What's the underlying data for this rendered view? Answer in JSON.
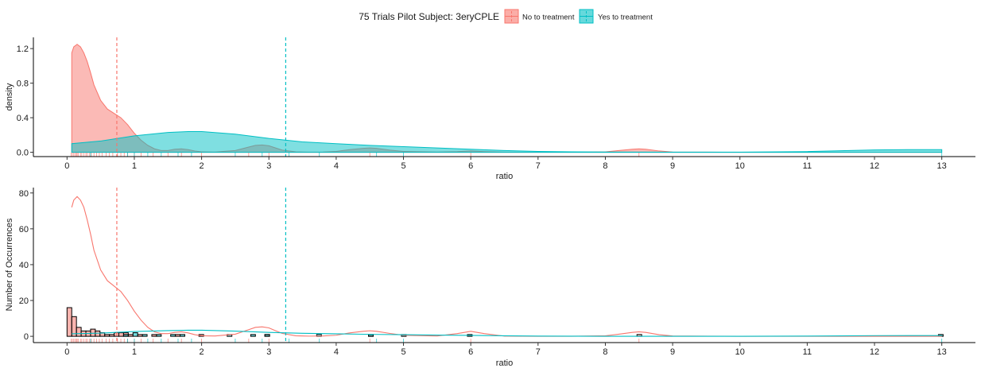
{
  "legend": {
    "title": "75 Trials Pilot Subject:  3eryCPLE",
    "items": [
      {
        "label": "No to treatment",
        "fill": "#F8766D",
        "key": "no"
      },
      {
        "label": "Yes to treatment",
        "fill": "#00BFC4",
        "key": "yes"
      }
    ]
  },
  "chart_data": [
    {
      "type": "area",
      "xlabel": "ratio",
      "ylabel": "density",
      "xlim": [
        -0.5,
        13.5
      ],
      "ylim": [
        -0.05,
        1.33
      ],
      "xticks": [
        0,
        1,
        2,
        3,
        4,
        5,
        6,
        7,
        8,
        9,
        10,
        11,
        12,
        13
      ],
      "yticks": [
        0.0,
        0.4,
        0.8,
        1.2
      ],
      "ytick_labels": [
        "0.0",
        "0.4",
        "0.8",
        "1.2"
      ],
      "series": [
        {
          "name": "No to treatment",
          "color": "#F8766D",
          "mean": 0.74,
          "x": [
            0.07,
            0.1,
            0.15,
            0.2,
            0.25,
            0.3,
            0.35,
            0.4,
            0.5,
            0.6,
            0.7,
            0.8,
            0.9,
            1.0,
            1.1,
            1.2,
            1.3,
            1.4,
            1.5,
            1.6,
            1.7,
            1.8,
            1.9,
            2.0,
            2.2,
            2.5,
            2.7,
            2.8,
            2.9,
            3.0,
            3.1,
            3.2,
            3.4,
            3.6,
            3.8,
            4.0,
            4.2,
            4.4,
            4.5,
            4.6,
            4.8,
            5.0,
            5.5,
            5.8,
            6.0,
            6.2,
            6.5,
            7.0,
            7.5,
            8.0,
            8.2,
            8.4,
            8.5,
            8.6,
            8.8,
            9.0,
            10.0,
            11.0,
            12.0,
            13.0
          ],
          "y": [
            1.15,
            1.22,
            1.25,
            1.22,
            1.15,
            1.05,
            0.92,
            0.78,
            0.6,
            0.5,
            0.45,
            0.4,
            0.32,
            0.22,
            0.14,
            0.08,
            0.04,
            0.02,
            0.02,
            0.035,
            0.04,
            0.03,
            0.015,
            0.005,
            0.003,
            0.02,
            0.06,
            0.08,
            0.085,
            0.075,
            0.05,
            0.025,
            0.005,
            0.002,
            0.003,
            0.01,
            0.03,
            0.045,
            0.05,
            0.045,
            0.025,
            0.01,
            0.003,
            0.008,
            0.015,
            0.008,
            0.002,
            0.0,
            0.0,
            0.005,
            0.02,
            0.035,
            0.04,
            0.035,
            0.015,
            0.003,
            0.0,
            0.0,
            0.0,
            0.0
          ]
        },
        {
          "name": "Yes to treatment",
          "color": "#00BFC4",
          "mean": 3.25,
          "x": [
            0.07,
            0.5,
            1.0,
            1.5,
            1.8,
            2.0,
            2.5,
            3.0,
            3.5,
            4.0,
            4.5,
            5.0,
            5.5,
            6.0,
            6.5,
            7.0,
            7.5,
            8.0,
            9.0,
            10.0,
            11.0,
            11.5,
            12.0,
            12.5,
            13.0
          ],
          "y": [
            0.1,
            0.13,
            0.19,
            0.23,
            0.24,
            0.24,
            0.21,
            0.16,
            0.12,
            0.1,
            0.08,
            0.065,
            0.05,
            0.035,
            0.02,
            0.01,
            0.005,
            0.003,
            0.002,
            0.002,
            0.008,
            0.018,
            0.027,
            0.03,
            0.03
          ]
        }
      ],
      "rug": {
        "No to treatment": [
          0.06,
          0.08,
          0.1,
          0.12,
          0.14,
          0.15,
          0.17,
          0.2,
          0.22,
          0.25,
          0.28,
          0.3,
          0.33,
          0.36,
          0.4,
          0.44,
          0.48,
          0.52,
          0.58,
          0.63,
          0.68,
          0.75,
          0.8,
          0.85,
          0.9,
          1.0,
          1.1,
          1.28,
          1.5,
          1.7,
          2.0,
          2.7,
          3.0,
          4.5,
          6.0,
          8.5
        ],
        "Yes to treatment": [
          0.35,
          0.9,
          1.0,
          1.2,
          1.4,
          1.65,
          1.85,
          2.5,
          2.9,
          3.3,
          3.75,
          4.6,
          5.0,
          13.0
        ]
      }
    },
    {
      "type": "bar",
      "xlabel": "ratio",
      "ylabel": "Number of Occurrences",
      "xlim": [
        -0.5,
        13.5
      ],
      "ylim": [
        -3.5,
        83
      ],
      "xticks": [
        0,
        1,
        2,
        3,
        4,
        5,
        6,
        7,
        8,
        9,
        10,
        11,
        12,
        13
      ],
      "yticks": [
        0,
        20,
        40,
        60,
        80
      ],
      "ytick_labels": [
        "0",
        "20",
        "40",
        "60",
        "80"
      ],
      "bins": {
        "No to treatment": {
          "start": [
            0.0,
            0.07,
            0.14,
            0.21,
            0.28,
            0.35,
            0.42,
            0.49,
            0.56,
            0.63,
            0.7,
            0.77,
            0.84,
            0.91,
            1.05,
            1.26,
            1.61,
            1.96,
            2.94,
            4.48,
            5.95,
            8.47
          ],
          "count": [
            16,
            11,
            5,
            3,
            3,
            4,
            3,
            2,
            1,
            1,
            2,
            2,
            2,
            1,
            1,
            1,
            1,
            1,
            1,
            1,
            1,
            1
          ]
        },
        "Yes to treatment": {
          "start": [
            0.84,
            0.98,
            1.12,
            1.33,
            1.54,
            1.68,
            2.38,
            2.73,
            2.94,
            3.71,
            4.48,
            4.97,
            12.95
          ],
          "count": [
            1,
            2,
            1,
            1,
            1,
            1,
            1,
            1,
            1,
            1,
            1,
            1,
            1
          ]
        },
        "width": 0.07
      },
      "series": [
        {
          "name": "No to treatment",
          "color": "#F8766D",
          "mean": 0.74,
          "x": [
            0.07,
            0.1,
            0.15,
            0.2,
            0.25,
            0.3,
            0.35,
            0.4,
            0.5,
            0.6,
            0.7,
            0.8,
            0.9,
            1.0,
            1.1,
            1.2,
            1.3,
            1.4,
            1.5,
            1.6,
            1.7,
            1.8,
            1.9,
            2.0,
            2.2,
            2.5,
            2.7,
            2.8,
            2.9,
            3.0,
            3.1,
            3.2,
            3.4,
            3.6,
            3.8,
            4.0,
            4.2,
            4.4,
            4.5,
            4.6,
            4.8,
            5.0,
            5.5,
            5.8,
            6.0,
            6.2,
            6.5,
            7.0,
            7.5,
            8.0,
            8.2,
            8.4,
            8.5,
            8.6,
            8.8,
            9.0,
            10.0,
            11.0,
            12.0,
            13.0
          ],
          "y": [
            72,
            76,
            78,
            76,
            72,
            65,
            57,
            48,
            37,
            31,
            28,
            25,
            20,
            14,
            9,
            5,
            2.5,
            1.5,
            1.5,
            2.2,
            2.5,
            1.9,
            0.9,
            0.3,
            0.2,
            1.2,
            3.7,
            5.0,
            5.3,
            4.7,
            3.1,
            1.6,
            0.3,
            0.1,
            0.2,
            0.6,
            1.9,
            2.8,
            3.1,
            2.8,
            1.6,
            0.6,
            0.2,
            1.5,
            2.8,
            1.5,
            0.1,
            0.0,
            0.0,
            0.3,
            1.2,
            2.2,
            2.5,
            2.2,
            0.9,
            0.2,
            0.0,
            0.0,
            0.0,
            0.0
          ]
        },
        {
          "name": "Yes to treatment",
          "color": "#00BFC4",
          "mean": 3.25,
          "x": [
            0.07,
            0.5,
            1.0,
            1.5,
            1.8,
            2.0,
            2.5,
            3.0,
            3.5,
            4.0,
            4.5,
            5.0,
            5.5,
            6.0,
            6.5,
            7.0,
            7.5,
            8.0,
            9.0,
            10.0,
            11.0,
            11.5,
            12.0,
            12.5,
            13.0
          ],
          "y": [
            1.4,
            1.8,
            2.7,
            3.2,
            3.4,
            3.4,
            2.9,
            2.2,
            1.7,
            1.4,
            1.1,
            0.9,
            0.7,
            0.5,
            0.3,
            0.14,
            0.07,
            0.04,
            0.03,
            0.03,
            0.11,
            0.25,
            0.38,
            0.42,
            0.42
          ]
        }
      ],
      "rug": {
        "No to treatment": [
          0.06,
          0.08,
          0.1,
          0.12,
          0.14,
          0.15,
          0.17,
          0.2,
          0.22,
          0.25,
          0.28,
          0.3,
          0.33,
          0.36,
          0.4,
          0.44,
          0.48,
          0.52,
          0.58,
          0.63,
          0.68,
          0.75,
          0.8,
          0.85,
          0.9,
          1.0,
          1.1,
          1.28,
          1.5,
          1.7,
          2.0,
          2.7,
          3.0,
          4.5,
          6.0,
          8.5
        ],
        "Yes to treatment": [
          0.35,
          0.9,
          1.0,
          1.2,
          1.4,
          1.65,
          1.85,
          2.5,
          2.9,
          3.3,
          3.75,
          4.6,
          5.0,
          13.0
        ]
      }
    }
  ]
}
